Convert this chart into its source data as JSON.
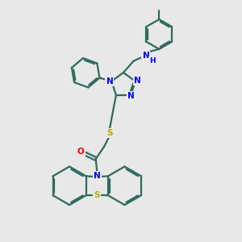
{
  "background_color": "#e8e8e8",
  "bond_color": "#2d6b5e",
  "atom_N_color": "#0000ee",
  "atom_S_color": "#bbaa00",
  "atom_O_color": "#ee0000",
  "line_width": 1.6,
  "figsize": [
    3.0,
    3.0
  ],
  "dpi": 100,
  "xlim": [
    0,
    10
  ],
  "ylim": [
    0,
    10
  ]
}
